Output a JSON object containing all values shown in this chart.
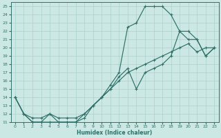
{
  "xlabel": "Humidex (Indice chaleur)",
  "xlim": [
    -0.5,
    23.5
  ],
  "ylim": [
    11,
    25.5
  ],
  "xticks": [
    0,
    1,
    2,
    3,
    4,
    5,
    6,
    7,
    8,
    9,
    10,
    11,
    12,
    13,
    14,
    15,
    16,
    17,
    18,
    19,
    20,
    21,
    22,
    23
  ],
  "yticks": [
    11,
    12,
    13,
    14,
    15,
    16,
    17,
    18,
    19,
    20,
    21,
    22,
    23,
    24,
    25
  ],
  "background_color": "#cbe8e4",
  "grid_color": "#aad0cc",
  "line_color": "#2e7068",
  "curve1_x": [
    0,
    1,
    2,
    3,
    4,
    5,
    6,
    7,
    8,
    9,
    10,
    11,
    12,
    13,
    14,
    15,
    16,
    17,
    18,
    19,
    20,
    21,
    22,
    23
  ],
  "curve1_y": [
    14,
    12,
    11,
    11,
    11,
    11,
    11,
    11,
    11.5,
    13,
    14,
    15.5,
    17,
    22.5,
    23,
    25,
    25,
    25,
    24,
    22,
    21,
    21,
    19,
    20
  ],
  "curve2_x": [
    0,
    1,
    2,
    3,
    4,
    5,
    6,
    7,
    8,
    9,
    10,
    11,
    12,
    13,
    14,
    15,
    16,
    17,
    18,
    19,
    20,
    21,
    22,
    23
  ],
  "curve2_y": [
    14,
    12,
    11,
    11,
    12,
    11,
    11,
    11,
    12,
    13,
    14,
    15,
    16.5,
    17.5,
    15,
    17,
    17.5,
    18,
    19,
    22,
    22,
    21,
    19,
    20
  ],
  "curve3_x": [
    0,
    1,
    2,
    3,
    4,
    5,
    6,
    7,
    8,
    9,
    10,
    11,
    12,
    13,
    14,
    15,
    16,
    17,
    18,
    19,
    20,
    21,
    22,
    23
  ],
  "curve3_y": [
    14,
    12,
    11.5,
    11.5,
    12,
    11.5,
    11.5,
    11.5,
    12,
    13,
    14,
    15,
    16,
    17,
    17.5,
    18,
    18.5,
    19,
    19.5,
    20,
    20.5,
    19.5,
    20,
    20
  ]
}
